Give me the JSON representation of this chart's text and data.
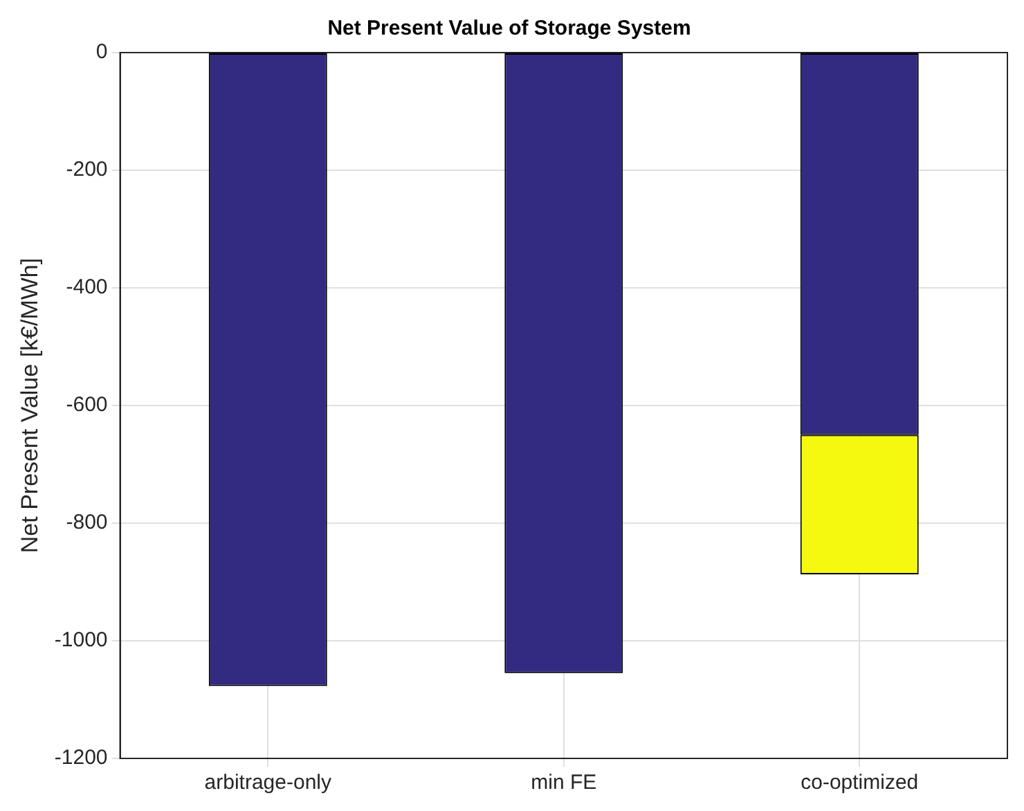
{
  "chart_data": {
    "type": "bar",
    "title": "Net Present Value of Storage System",
    "ylabel": "Net Present Value [k€/MWh]",
    "categories": [
      "arbitrage-only",
      "min FE",
      "co-optimized"
    ],
    "stacked": true,
    "series": [
      {
        "color": "#332a81",
        "values": [
          -1077,
          -1055,
          -650
        ]
      },
      {
        "color": "#f5f80f",
        "values": [
          0,
          0,
          -237
        ]
      }
    ],
    "ylim": [
      -1200,
      0
    ],
    "yticks": [
      -1200,
      -1000,
      -800,
      -600,
      -400,
      -200,
      0
    ],
    "grid": true,
    "legend": false
  }
}
